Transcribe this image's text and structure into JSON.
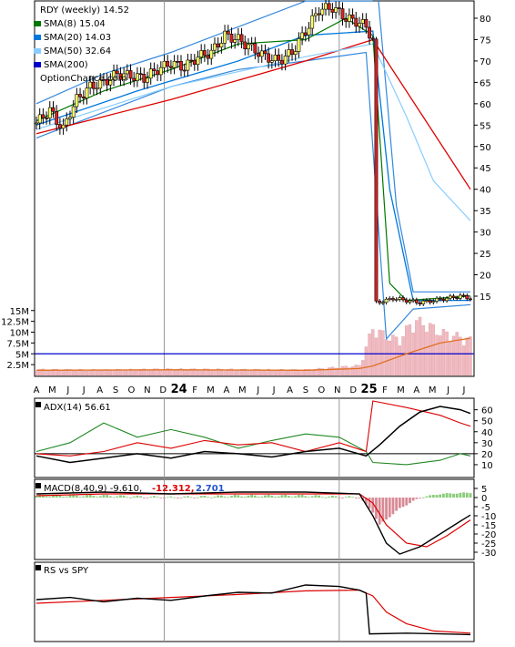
{
  "chart_data": [
    {
      "type": "candlestick",
      "panel": "price",
      "symbol_label": "RDY (weekly) 14.52",
      "watermark": "OptionChance.com",
      "legend": [
        {
          "label": "SMA(8) 15.04",
          "color": "#007700"
        },
        {
          "label": "SMA(20) 14.03",
          "color": "#0077dd"
        },
        {
          "label": "SMA(50) 32.64",
          "color": "#88ccff"
        },
        {
          "label": "SMA(200)",
          "color": "#0000cc"
        }
      ],
      "y_ticks": [
        15,
        20,
        25,
        30,
        35,
        40,
        45,
        50,
        55,
        60,
        65,
        70,
        75,
        80
      ],
      "ylim": [
        11.5,
        84
      ],
      "close_points": [
        [
          0,
          55.5
        ],
        [
          4,
          58.5
        ],
        [
          6,
          56
        ],
        [
          8,
          54
        ],
        [
          10,
          58
        ],
        [
          12,
          61
        ],
        [
          16,
          64
        ],
        [
          20,
          65
        ],
        [
          24,
          67
        ],
        [
          28,
          66.5
        ],
        [
          32,
          66
        ],
        [
          36,
          68
        ],
        [
          40,
          69.5
        ],
        [
          44,
          68.5
        ],
        [
          48,
          71
        ],
        [
          52,
          72
        ],
        [
          56,
          76
        ],
        [
          60,
          75
        ],
        [
          64,
          73
        ],
        [
          68,
          71
        ],
        [
          72,
          70
        ],
        [
          76,
          72
        ],
        [
          80,
          77
        ],
        [
          84,
          82
        ],
        [
          88,
          82.5
        ],
        [
          92,
          80
        ],
        [
          96,
          79
        ],
        [
          98,
          78
        ],
        [
          100,
          75
        ],
        [
          101,
          13.5
        ],
        [
          104,
          14
        ],
        [
          106,
          14.5
        ],
        [
          110,
          14
        ],
        [
          114,
          13.5
        ],
        [
          118,
          14
        ],
        [
          122,
          14.5
        ],
        [
          126,
          15
        ],
        [
          129,
          14.52
        ]
      ],
      "sma8_points": [
        [
          0,
          56
        ],
        [
          20,
          63
        ],
        [
          40,
          68
        ],
        [
          60,
          74
        ],
        [
          80,
          75
        ],
        [
          92,
          80
        ],
        [
          100,
          76
        ],
        [
          105,
          18
        ],
        [
          110,
          14
        ],
        [
          129,
          15.04
        ]
      ],
      "sma20_points": [
        [
          0,
          55
        ],
        [
          30,
          63
        ],
        [
          60,
          70
        ],
        [
          80,
          76
        ],
        [
          100,
          77
        ],
        [
          105,
          40
        ],
        [
          112,
          14
        ],
        [
          129,
          14.03
        ]
      ],
      "sma50_points": [
        [
          0,
          54
        ],
        [
          40,
          64
        ],
        [
          80,
          71
        ],
        [
          100,
          74
        ],
        [
          110,
          57
        ],
        [
          118,
          42
        ],
        [
          129,
          32.64
        ]
      ],
      "bb_upper_points": [
        [
          0,
          60
        ],
        [
          20,
          67
        ],
        [
          40,
          72
        ],
        [
          60,
          78
        ],
        [
          80,
          84
        ],
        [
          100,
          84
        ],
        [
          101,
          90
        ],
        [
          107,
          36
        ],
        [
          112,
          16
        ],
        [
          129,
          16
        ]
      ],
      "bb_lower_points": [
        [
          0,
          52
        ],
        [
          20,
          58
        ],
        [
          40,
          64
        ],
        [
          60,
          68
        ],
        [
          80,
          70
        ],
        [
          98,
          72
        ],
        [
          104,
          5
        ],
        [
          112,
          12
        ],
        [
          129,
          13
        ]
      ],
      "sma200_points": [
        [
          0,
          53
        ],
        [
          40,
          61
        ],
        [
          80,
          70
        ],
        [
          100,
          75
        ],
        [
          129,
          40
        ]
      ]
    },
    {
      "type": "bar",
      "panel": "volume",
      "y_ticks": [
        "15M",
        "12.5M",
        "10M",
        "7.5M",
        "5M",
        "2.5M"
      ],
      "y_tick_values": [
        15,
        12.5,
        10,
        7.5,
        5,
        2.5
      ],
      "ylim": [
        0,
        16
      ],
      "reference_level": 5,
      "volume_profile": [
        [
          0,
          1.5
        ],
        [
          20,
          1.4
        ],
        [
          40,
          1.6
        ],
        [
          60,
          1.5
        ],
        [
          80,
          1.4
        ],
        [
          96,
          2.5
        ],
        [
          100,
          12
        ],
        [
          104,
          10
        ],
        [
          108,
          9
        ],
        [
          112,
          14
        ],
        [
          116,
          13
        ],
        [
          120,
          11
        ],
        [
          125,
          10
        ],
        [
          129,
          9
        ]
      ],
      "volume_ma": [
        [
          0,
          1.2
        ],
        [
          40,
          1.3
        ],
        [
          80,
          1.2
        ],
        [
          96,
          1.6
        ],
        [
          100,
          2.2
        ],
        [
          110,
          5
        ],
        [
          120,
          7.5
        ],
        [
          129,
          8.6
        ]
      ],
      "x_tick_labels": [
        "A",
        "M",
        "J",
        "J",
        "A",
        "S",
        "O",
        "N",
        "D",
        "24",
        "F",
        "M",
        "A",
        "M",
        "J",
        "J",
        "A",
        "S",
        "O",
        "N",
        "D",
        "25",
        "F",
        "M",
        "A",
        "M",
        "J",
        "J"
      ]
    },
    {
      "type": "line",
      "panel": "adx",
      "label": "ADX(14) 56.61",
      "y_ticks": [
        10,
        20,
        30,
        40,
        50,
        60
      ],
      "ylim": [
        0,
        68
      ],
      "reference_level": 20,
      "adx": [
        [
          0,
          18
        ],
        [
          10,
          12
        ],
        [
          20,
          16
        ],
        [
          30,
          20
        ],
        [
          40,
          16
        ],
        [
          50,
          22
        ],
        [
          60,
          20
        ],
        [
          70,
          17
        ],
        [
          80,
          22
        ],
        [
          90,
          25
        ],
        [
          98,
          18
        ],
        [
          102,
          28
        ],
        [
          108,
          45
        ],
        [
          114,
          58
        ],
        [
          120,
          63
        ],
        [
          126,
          60
        ],
        [
          129,
          56.61
        ]
      ],
      "plus_di": [
        [
          0,
          22
        ],
        [
          10,
          30
        ],
        [
          20,
          48
        ],
        [
          30,
          35
        ],
        [
          40,
          42
        ],
        [
          50,
          35
        ],
        [
          60,
          25
        ],
        [
          70,
          32
        ],
        [
          80,
          38
        ],
        [
          90,
          35
        ],
        [
          98,
          22
        ],
        [
          100,
          12
        ],
        [
          110,
          10
        ],
        [
          120,
          14
        ],
        [
          126,
          20
        ],
        [
          129,
          18
        ]
      ],
      "minus_di": [
        [
          0,
          20
        ],
        [
          10,
          18
        ],
        [
          20,
          22
        ],
        [
          30,
          30
        ],
        [
          40,
          25
        ],
        [
          50,
          32
        ],
        [
          60,
          28
        ],
        [
          70,
          30
        ],
        [
          80,
          22
        ],
        [
          90,
          30
        ],
        [
          98,
          22
        ],
        [
          100,
          68
        ],
        [
          110,
          62
        ],
        [
          120,
          55
        ],
        [
          126,
          48
        ],
        [
          129,
          45
        ]
      ]
    },
    {
      "type": "line",
      "panel": "macd",
      "label": "MACD(8,40,9) -9.610,",
      "label2": "-12.312,",
      "label3": "2.701",
      "y_ticks": [
        5,
        0,
        -5,
        -10,
        -15,
        -20,
        -25,
        -30
      ],
      "ylim": [
        -33,
        8
      ],
      "macd": [
        [
          0,
          2
        ],
        [
          20,
          3
        ],
        [
          40,
          2
        ],
        [
          60,
          3
        ],
        [
          80,
          3
        ],
        [
          96,
          2
        ],
        [
          100,
          -10
        ],
        [
          104,
          -25
        ],
        [
          108,
          -31
        ],
        [
          114,
          -27
        ],
        [
          120,
          -20
        ],
        [
          126,
          -13
        ],
        [
          129,
          -9.61
        ]
      ],
      "signal": [
        [
          0,
          1
        ],
        [
          20,
          2
        ],
        [
          40,
          2
        ],
        [
          60,
          2
        ],
        [
          80,
          2
        ],
        [
          96,
          2
        ],
        [
          100,
          -3
        ],
        [
          104,
          -15
        ],
        [
          110,
          -25
        ],
        [
          116,
          -27
        ],
        [
          122,
          -21
        ],
        [
          129,
          -12.312
        ]
      ],
      "histogram": [
        [
          0,
          1
        ],
        [
          20,
          1
        ],
        [
          40,
          0
        ],
        [
          60,
          1
        ],
        [
          80,
          1
        ],
        [
          96,
          0
        ],
        [
          100,
          -8
        ],
        [
          102,
          -15
        ],
        [
          104,
          -12
        ],
        [
          108,
          -6
        ],
        [
          114,
          0
        ],
        [
          120,
          2
        ],
        [
          129,
          2.701
        ]
      ]
    },
    {
      "type": "line",
      "panel": "rs",
      "label": "RS vs SPY",
      "ylim": [
        0,
        100
      ],
      "rs": [
        [
          0,
          55
        ],
        [
          10,
          58
        ],
        [
          20,
          52
        ],
        [
          30,
          57
        ],
        [
          40,
          54
        ],
        [
          50,
          60
        ],
        [
          60,
          65
        ],
        [
          70,
          64
        ],
        [
          80,
          75
        ],
        [
          90,
          73
        ],
        [
          96,
          68
        ],
        [
          98,
          64
        ],
        [
          99,
          8
        ],
        [
          110,
          9
        ],
        [
          120,
          8
        ],
        [
          129,
          7
        ]
      ],
      "rs_ma": [
        [
          0,
          50
        ],
        [
          20,
          54
        ],
        [
          40,
          58
        ],
        [
          60,
          62
        ],
        [
          80,
          67
        ],
        [
          96,
          68
        ],
        [
          100,
          60
        ],
        [
          104,
          38
        ],
        [
          110,
          22
        ],
        [
          118,
          12
        ],
        [
          129,
          9
        ]
      ]
    }
  ]
}
